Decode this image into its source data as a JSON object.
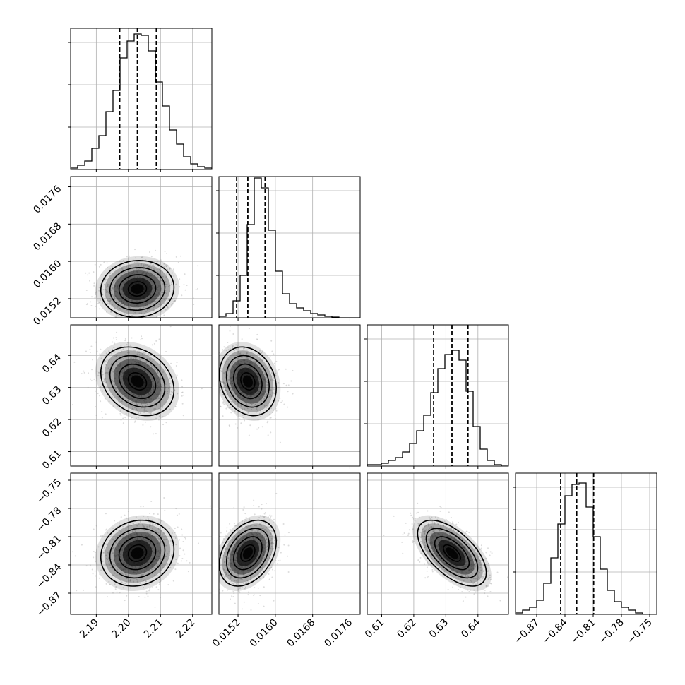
{
  "chart_data": {
    "type": "corner",
    "params": [
      {
        "ticks": [
          "2.19",
          "2.20",
          "2.21",
          "2.22"
        ],
        "tick_values": [
          2.19,
          2.2,
          2.21,
          2.22
        ],
        "range": [
          2.182,
          2.226
        ]
      },
      {
        "ticks": [
          "0.0152",
          "0.0160",
          "0.0168",
          "0.0176"
        ],
        "tick_values": [
          0.0152,
          0.016,
          0.0168,
          0.0176
        ],
        "range": [
          0.01479,
          0.01782
        ]
      },
      {
        "ticks": [
          "0.61",
          "0.62",
          "0.63",
          "0.64"
        ],
        "tick_values": [
          0.61,
          0.62,
          0.63,
          0.64
        ],
        "range": [
          0.6055,
          0.6495
        ]
      },
      {
        "ticks": [
          "−0.87",
          "−0.84",
          "−0.81",
          "−0.78",
          "−0.75"
        ],
        "tick_values": [
          -0.87,
          -0.84,
          -0.81,
          -0.78,
          -0.75
        ],
        "range": [
          -0.8925,
          -0.7425
        ]
      }
    ],
    "quantiles": [
      [
        2.1973,
        2.2028,
        2.2087
      ],
      [
        0.01517,
        0.01541,
        0.01578
      ],
      [
        0.6262,
        0.6319,
        0.6369
      ],
      [
        -0.8445,
        -0.8275,
        -0.8095
      ]
    ],
    "histograms": [
      [
        0.01,
        0.03,
        0.06,
        0.15,
        0.24,
        0.41,
        0.56,
        0.79,
        0.91,
        0.96,
        0.95,
        0.84,
        0.62,
        0.45,
        0.28,
        0.18,
        0.09,
        0.04,
        0.02,
        0.01
      ],
      [
        0.01,
        0.03,
        0.12,
        0.3,
        0.66,
        0.99,
        0.92,
        0.62,
        0.33,
        0.17,
        0.1,
        0.07,
        0.05,
        0.03,
        0.02,
        0.01,
        0.005,
        0.0,
        0.0,
        0.0
      ],
      [
        0.01,
        0.01,
        0.02,
        0.04,
        0.06,
        0.1,
        0.16,
        0.25,
        0.36,
        0.52,
        0.69,
        0.79,
        0.82,
        0.75,
        0.53,
        0.28,
        0.12,
        0.04,
        0.01,
        0.0
      ],
      [
        0.01,
        0.03,
        0.05,
        0.1,
        0.22,
        0.4,
        0.64,
        0.84,
        0.92,
        0.93,
        0.76,
        0.55,
        0.32,
        0.17,
        0.09,
        0.05,
        0.03,
        0.01,
        0.0,
        0.0
      ]
    ],
    "correlations": {
      "1-0": 0.05,
      "2-0": -0.25,
      "2-1": -0.2,
      "3-0": 0.12,
      "3-1": 0.35,
      "3-2": -0.6
    },
    "grid": true,
    "quantile_lines": "dashed",
    "colors": {
      "line": "#000000",
      "grid": "#b0b0b0",
      "points": "#9a9a9a"
    }
  }
}
